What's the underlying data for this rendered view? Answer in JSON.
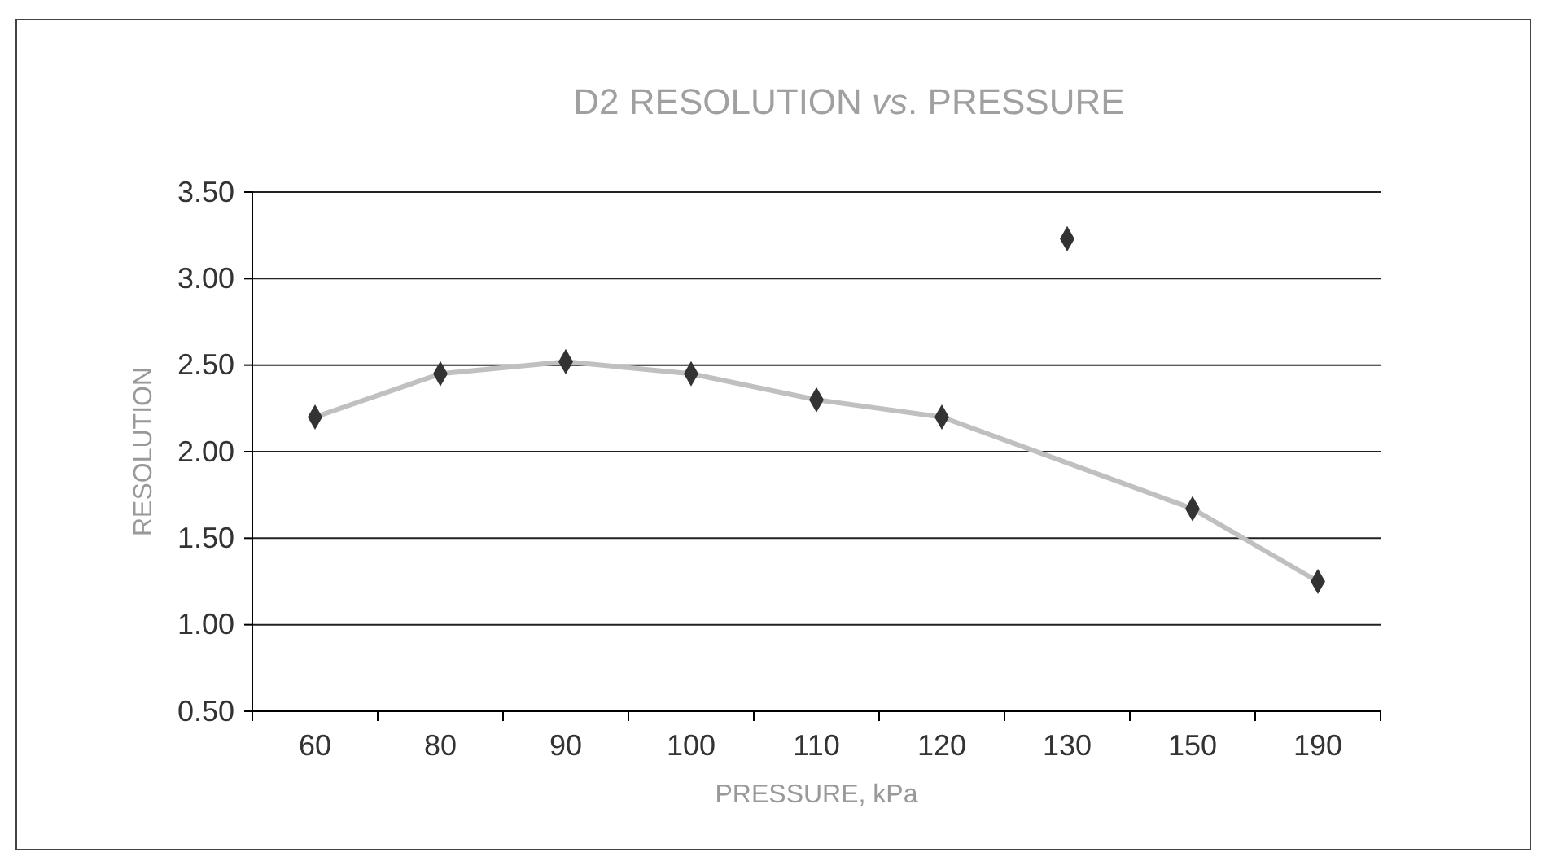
{
  "chart_data": {
    "type": "scatter",
    "title": "D2 RESOLUTION $_{}$vs. PRESSURE",
    "xlabel": "PRESSURE, kPa",
    "ylabel": "RESOLUTION",
    "categories": [
      "60",
      "80",
      "90",
      "100",
      "110",
      "120",
      "130",
      "150",
      "190"
    ],
    "ylim": [
      0.5,
      3.5
    ],
    "yticks": [
      {
        "value": 0.5,
        "label": "0.50"
      },
      {
        "value": 1,
        "label": "1.00"
      },
      {
        "value": 1.5,
        "label": "1.50"
      },
      {
        "value": 2,
        "label": "2.00"
      },
      {
        "value": 2.5,
        "label": "2.50"
      },
      {
        "value": 3,
        "label": "3.00"
      },
      {
        "value": 3.5,
        "label": "3.50"
      }
    ],
    "grid": "y",
    "marker": "diamond",
    "series": [
      {
        "type": "line",
        "color": "#c0c0c0",
        "x": [
          "60",
          "80",
          "90",
          "100",
          "110",
          "120",
          "150",
          "190"
        ],
        "values": [
          2.2,
          2.45,
          2.52,
          2.45,
          2.3,
          2.2,
          1.67,
          1.25
        ],
        "marker": "none"
      },
      {
        "color": "#333333",
        "values": [
          2.2,
          2.45,
          2.52,
          2.45,
          2.3,
          2.2,
          3.23,
          1.67,
          1.25
        ]
      }
    ]
  }
}
